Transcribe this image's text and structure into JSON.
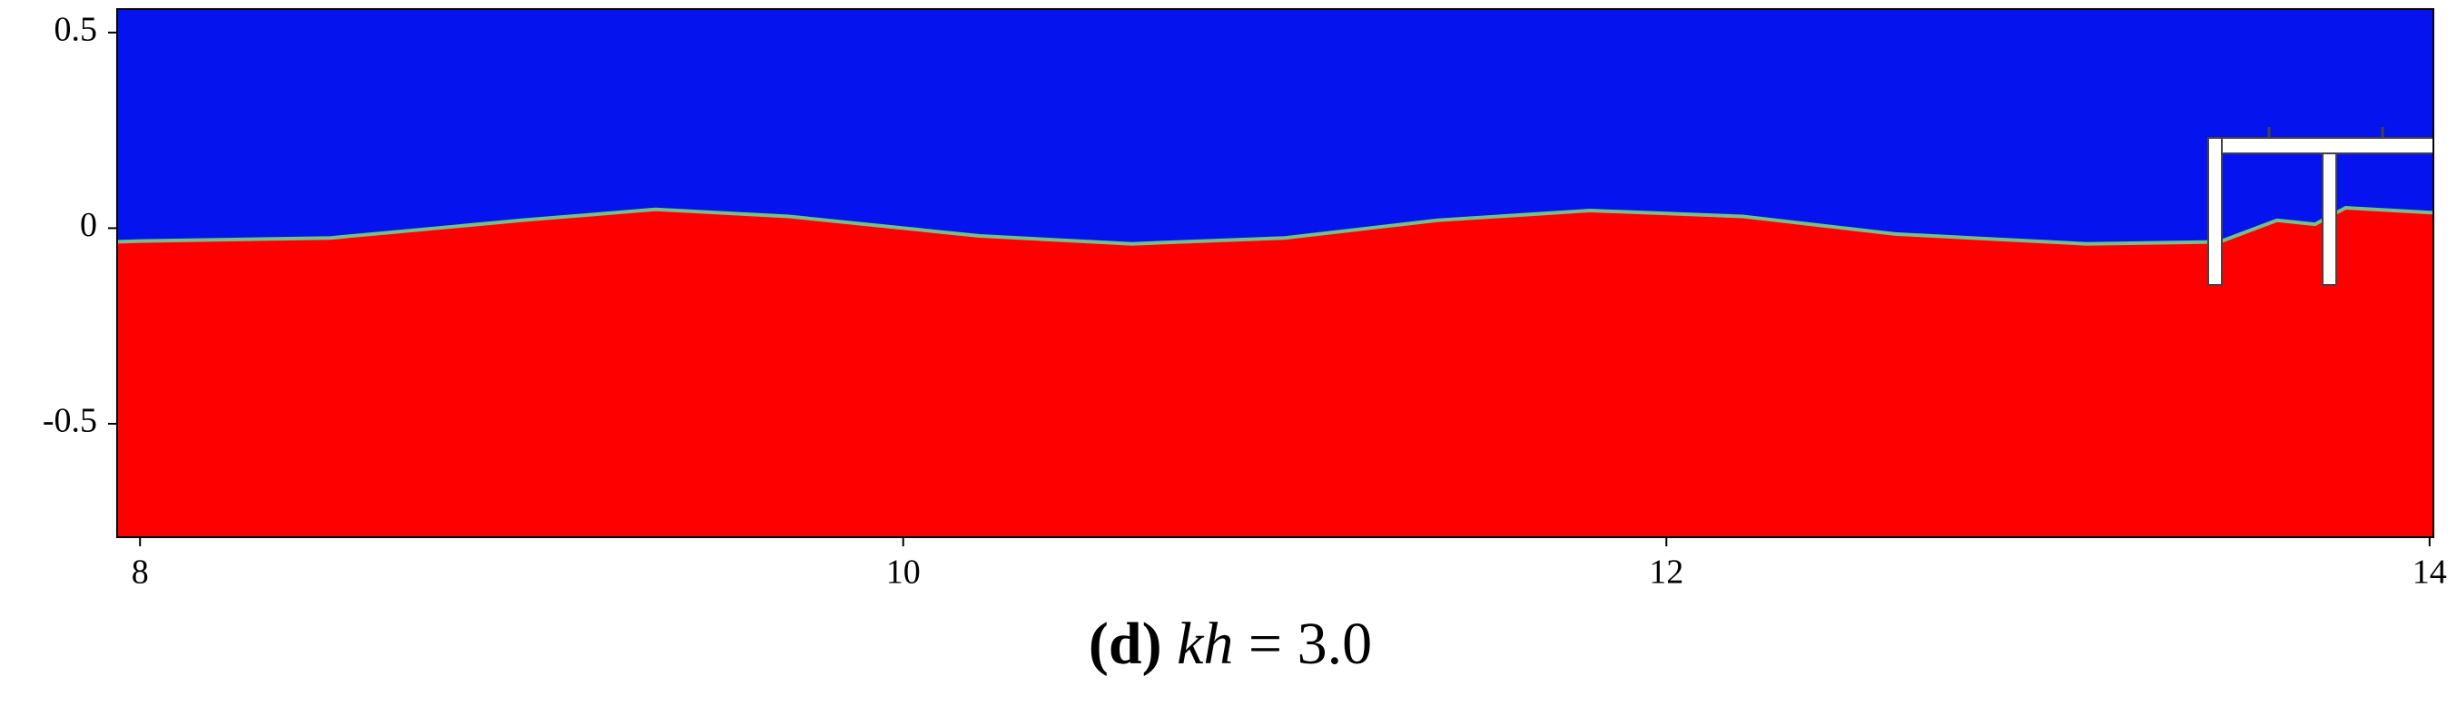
{
  "chart_data": {
    "type": "area",
    "caption": {
      "panel": "(d)",
      "symbol": "kh",
      "rest": "= 3.0"
    },
    "x": [
      7.94,
      8,
      8.5,
      9,
      9.35,
      9.7,
      10.2,
      10.6,
      11,
      11.4,
      11.8,
      12.2,
      12.6,
      13.1,
      13.45,
      13.6,
      13.7,
      13.78,
      14,
      14.01
    ],
    "values": [
      -0.035,
      -0.033,
      -0.025,
      0.02,
      0.048,
      0.03,
      -0.02,
      -0.04,
      -0.025,
      0.02,
      0.045,
      0.03,
      -0.015,
      -0.04,
      -0.035,
      0.02,
      0.01,
      0.052,
      0.04,
      0.04
    ],
    "color": "#fe0000",
    "background": "#0514ee",
    "line_color": "#6fc28a",
    "xlim": [
      7.94,
      14.01
    ],
    "xticks": [
      8,
      10,
      12,
      14
    ],
    "ylim": [
      -0.79,
      0.56
    ],
    "yticks": [
      -0.5,
      0,
      0.5
    ]
  }
}
